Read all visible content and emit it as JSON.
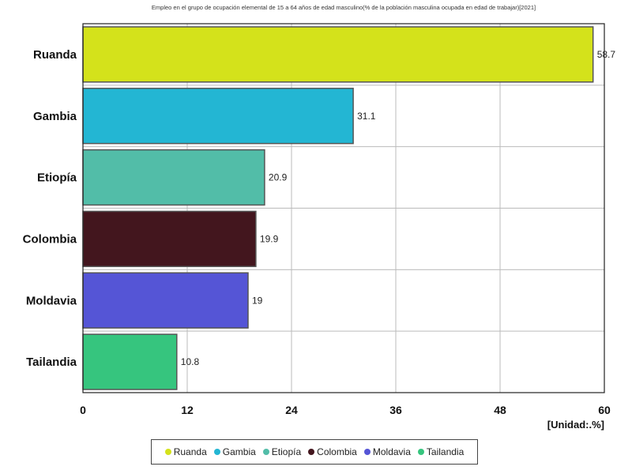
{
  "chart_data": {
    "type": "bar",
    "orientation": "horizontal",
    "title": "Empleo en el grupo de ocupación elemental de 15 a 64 años de edad masculino(% de la población masculina ocupada en edad de trabajar)[2021]",
    "categories": [
      "Ruanda",
      "Gambia",
      "Etiopía",
      "Colombia",
      "Moldavia",
      "Tailandia"
    ],
    "values": [
      58.7,
      31.1,
      20.9,
      19.9,
      19,
      10.8
    ],
    "value_labels": [
      "58.7",
      "31.1",
      "20.9",
      "19.9",
      "19",
      "10.8"
    ],
    "colors": [
      "#d4e21b",
      "#23b6d3",
      "#52bda8",
      "#43161e",
      "#5555d6",
      "#36c57e"
    ],
    "xlim": [
      0,
      60
    ],
    "xticks": [
      "0",
      "12",
      "24",
      "36",
      "48",
      "60"
    ],
    "unit_label": "[Unidad:.%]",
    "legend": [
      "Ruanda",
      "Gambia",
      "Etiopía",
      "Colombia",
      "Moldavia",
      "Tailandia"
    ],
    "legend_position": "bottom",
    "grid": true
  }
}
